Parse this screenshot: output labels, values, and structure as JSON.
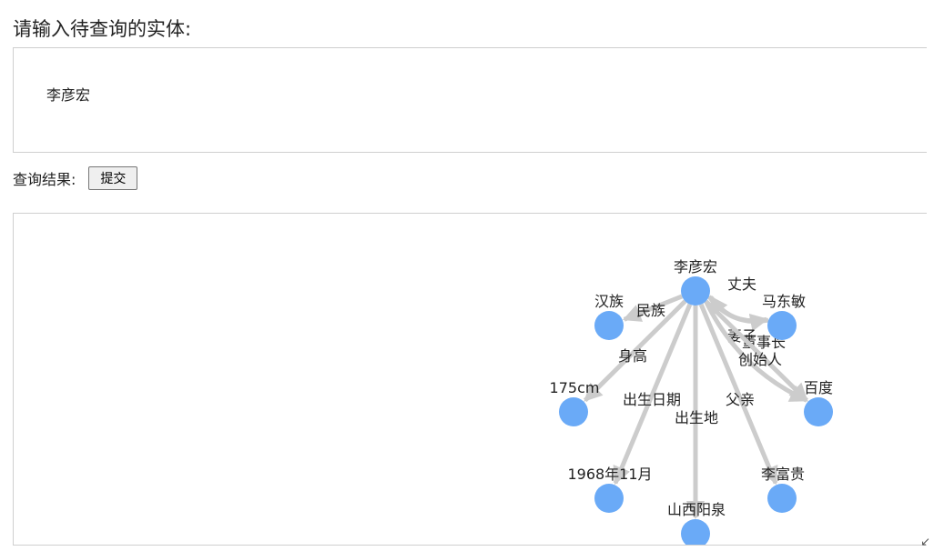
{
  "prompt": "请输入待查询的实体:",
  "entity_input": {
    "value": "李彦宏"
  },
  "result_label": "查询结果:",
  "submit_label": "提交",
  "graph": {
    "nodes": [
      {
        "id": "liyanhong",
        "label": "李彦宏"
      },
      {
        "id": "madongmin",
        "label": "马东敏"
      },
      {
        "id": "hanzu",
        "label": "汉族"
      },
      {
        "id": "baidu",
        "label": "百度"
      },
      {
        "id": "height",
        "label": "175cm"
      },
      {
        "id": "birthdate",
        "label": "1968年11月"
      },
      {
        "id": "lifugui",
        "label": "李富贵"
      },
      {
        "id": "yangquan",
        "label": "山西阳泉"
      }
    ],
    "edges": [
      {
        "source": "liyanhong",
        "target": "madongmin",
        "label": "丈夫"
      },
      {
        "source": "madongmin",
        "target": "liyanhong",
        "label": "妻子"
      },
      {
        "source": "liyanhong",
        "target": "hanzu",
        "label": "民族"
      },
      {
        "source": "liyanhong",
        "target": "height",
        "label": "身高"
      },
      {
        "source": "liyanhong",
        "target": "birthdate",
        "label": "出生日期"
      },
      {
        "source": "liyanhong",
        "target": "yangquan",
        "label": "出生地"
      },
      {
        "source": "liyanhong",
        "target": "lifugui",
        "label": "父亲"
      },
      {
        "source": "liyanhong",
        "target": "baidu",
        "label": "董事长"
      },
      {
        "source": "liyanhong",
        "target": "baidu",
        "label": "创始人"
      }
    ]
  },
  "colors": {
    "node": "#6aaaf7",
    "edge": "#cccccc"
  },
  "icons": {
    "corner": "arrow-left-icon"
  }
}
